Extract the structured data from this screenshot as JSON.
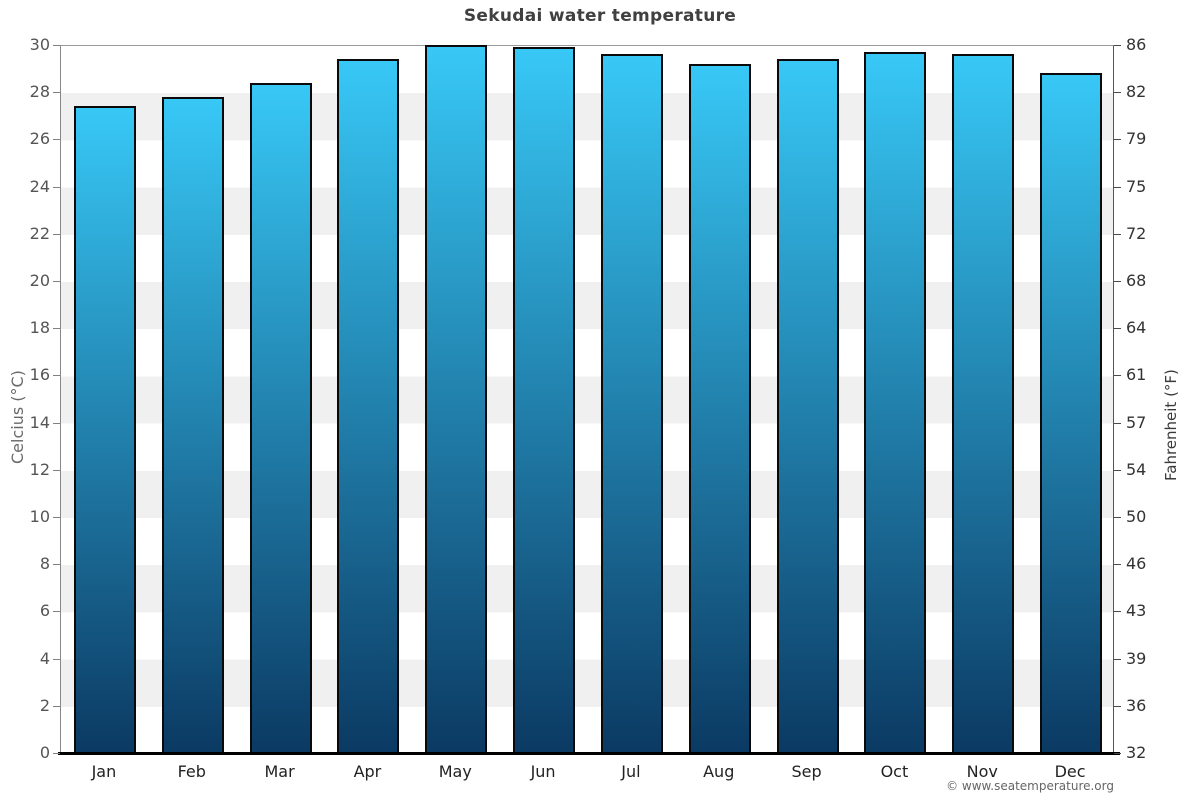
{
  "page": {
    "title": "Sekudai water temperature",
    "copyright": "© www.seatemperature.org"
  },
  "chart_data": {
    "type": "bar",
    "title": "Sekudai water temperature",
    "categories": [
      "Jan",
      "Feb",
      "Mar",
      "Apr",
      "May",
      "Jun",
      "Jul",
      "Aug",
      "Sep",
      "Oct",
      "Nov",
      "Dec"
    ],
    "series": [
      {
        "name": "Water temperature (°C)",
        "values": [
          27.4,
          27.8,
          28.4,
          29.4,
          30.0,
          29.9,
          29.6,
          29.2,
          29.4,
          29.7,
          29.6,
          28.8
        ]
      }
    ],
    "ylabel_left": "Celcius (°C)",
    "ylabel_right": "Fahrenheit (°F)",
    "ylim": [
      0,
      30
    ],
    "yticks_left": [
      "30",
      "28",
      "26",
      "24",
      "22",
      "20",
      "18",
      "16",
      "14",
      "12",
      "10",
      "8",
      "6",
      "4",
      "2",
      "0"
    ],
    "yticks_right": [
      "86",
      "82",
      "79",
      "75",
      "72",
      "68",
      "64",
      "61",
      "57",
      "54",
      "50",
      "46",
      "43",
      "39",
      "36",
      "32"
    ],
    "grid": "alternating horizontal bands every 2°C",
    "legend": "none",
    "colors": {
      "bar_gradient_top": "#38c8f6",
      "bar_gradient_bottom": "#0b3a63",
      "bar_border": "#0a0a0a",
      "band_white": "#ffffff",
      "band_gray": "#f0f0f0",
      "axis_line": "#808080",
      "x_axis_line": "#000000",
      "title_color": "#404040",
      "tick_label_left_color": "#555555",
      "tick_label_right_color": "#333333",
      "month_label_color": "#222222",
      "copyright_color": "#666666"
    }
  }
}
